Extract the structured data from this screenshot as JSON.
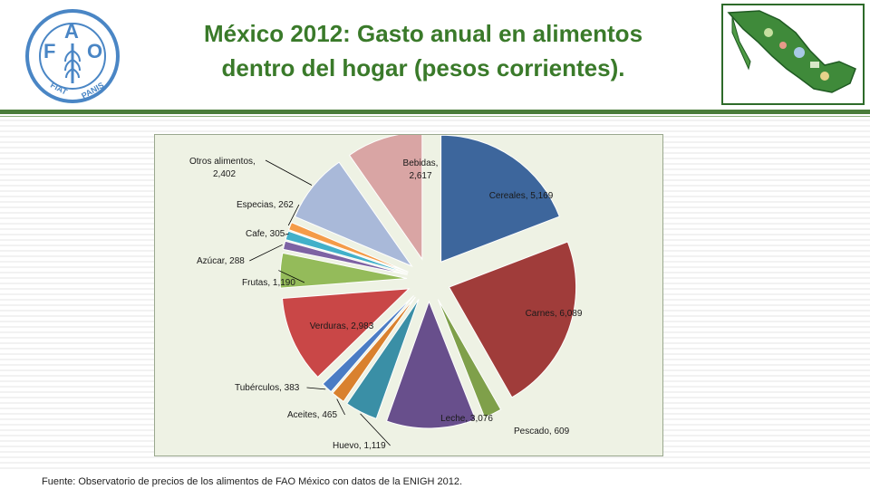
{
  "header": {
    "title_line1": "México 2012: Gasto anual en alimentos",
    "title_line2": "dentro del hogar (pesos corrientes).",
    "logo_text": "FAO FIAT PANIS"
  },
  "colors": {
    "title": "#3a7a2a",
    "rule": "#4a7d3a",
    "chart_background": "#eef2e4"
  },
  "chart_data": {
    "type": "pie",
    "exploded": true,
    "start_angle_deg": 0,
    "direction": "clockwise",
    "slices": [
      {
        "label": "Cereales",
        "value": 5169,
        "display": "Cereales, 5,169",
        "color": "#3d669c"
      },
      {
        "label": "Carnes",
        "value": 6089,
        "display": "Carnes, 6,089",
        "color": "#a03c3a"
      },
      {
        "label": "Pescado",
        "value": 609,
        "display": "Pescado, 609",
        "color": "#7fa04a"
      },
      {
        "label": "Leche",
        "value": 3076,
        "display": "Leche, 3,076",
        "color": "#684f8c"
      },
      {
        "label": "Huevo",
        "value": 1119,
        "display": "Huevo, 1,119",
        "color": "#3a8fa6"
      },
      {
        "label": "Aceites",
        "value": 465,
        "display": "Aceites, 465",
        "color": "#d9812e"
      },
      {
        "label": "Tubérculos",
        "value": 383,
        "display": "Tubérculos, 383",
        "color": "#4a7cc4"
      },
      {
        "label": "Verduras",
        "value": 2983,
        "display": "Verduras, 2,983",
        "color": "#c94747"
      },
      {
        "label": "Frutas",
        "value": 1190,
        "display": "Frutas, 1,190",
        "color": "#94bb5a"
      },
      {
        "label": "Azúcar",
        "value": 288,
        "display": "Azúcar, 288",
        "color": "#7d62a3"
      },
      {
        "label": "Cafe",
        "value": 305,
        "display": "Cafe, 305",
        "color": "#41b0c9"
      },
      {
        "label": "Especias",
        "value": 262,
        "display": "Especias, 262",
        "color": "#f49b48"
      },
      {
        "label": "Otros alimentos",
        "value": 2402,
        "display": "Otros alimentos, 2,402",
        "color": "#a9b9d9"
      },
      {
        "label": "Bebidas",
        "value": 2617,
        "display": "Bebidas, 2,617",
        "color": "#d9a5a4"
      }
    ]
  },
  "footer": {
    "source": "Fuente: Observatorio de precios de los alimentos de FAO México con datos de la ENIGH 2012."
  }
}
